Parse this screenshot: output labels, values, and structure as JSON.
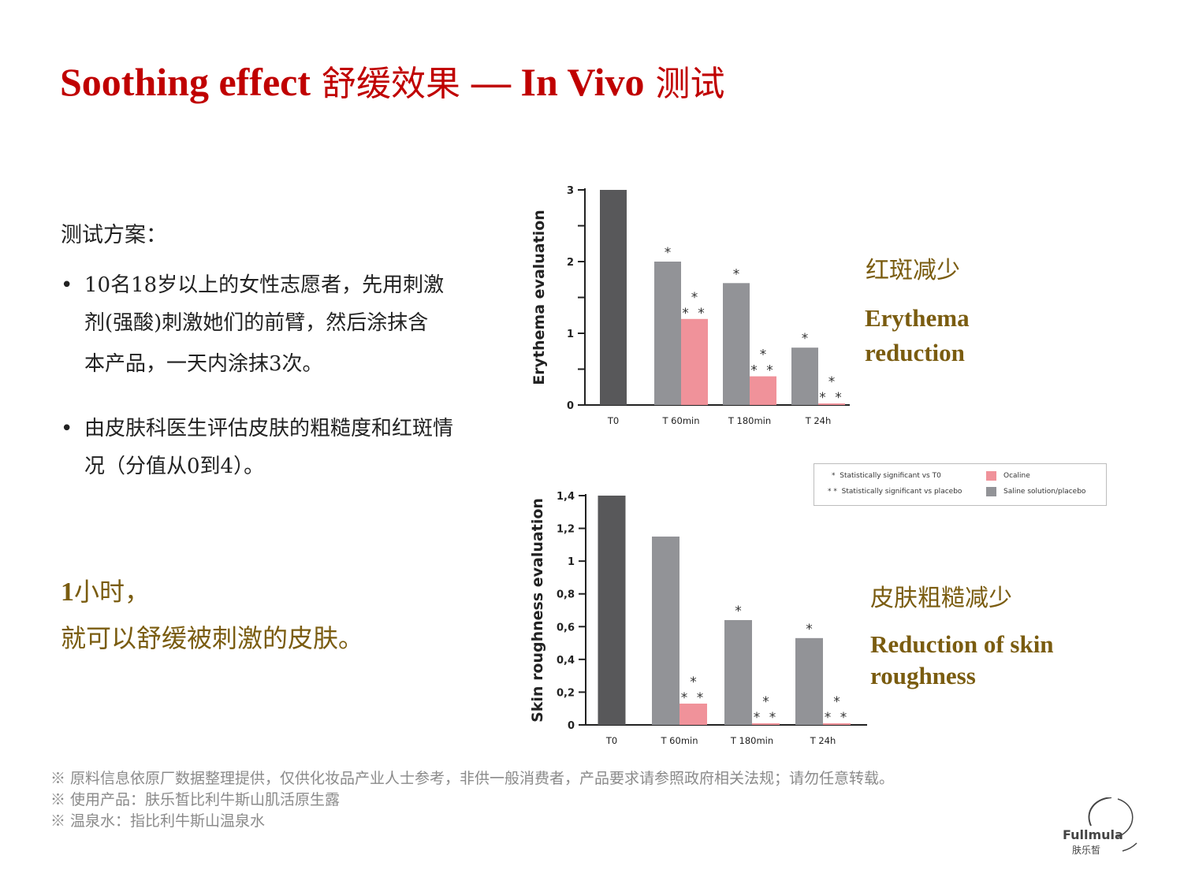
{
  "title": {
    "part1": "Soothing effect",
    "part2": " 舒缓效果 ",
    "part3": "— In Vivo",
    "part4": " 测试"
  },
  "plan": {
    "heading": "测试方案：",
    "bullets": [
      {
        "symbol": "•",
        "line1": "10名18岁以上的女性志愿者，先用刺激",
        "line2": "剂(强酸)刺激她们的前臂，然后涂抹含",
        "line3": "本产品，一天内涂抹3次。"
      },
      {
        "symbol": "•",
        "line1": "由皮肤科医生评估皮肤的粗糙度和红斑情",
        "line2": "况（分值从0到4）。"
      }
    ]
  },
  "highlight": {
    "bold": "1",
    "line1_rest": "小时，",
    "line2": "就可以舒缓被刺激的皮肤。"
  },
  "chart_labels": {
    "erythema_cn": "红斑减少",
    "erythema_en_1": "Erythema",
    "erythema_en_2": "reduction",
    "roughness_cn": "皮肤粗糙减少",
    "roughness_en_1": "Reduction of skin",
    "roughness_en_2": "roughness"
  },
  "legend": {
    "items": [
      {
        "symbol": "*",
        "text": "Statistically significant vs T0"
      },
      {
        "symbol": "* *",
        "text": "Statistically significant vs placebo"
      },
      {
        "text": "Ocaline",
        "color": "#f0929a"
      },
      {
        "text": "Saline solution/placebo",
        "color": "#929397"
      }
    ]
  },
  "footnotes": [
    "※ 原料信息依原厂数据整理提供，仅供化妆品产业人士参考，非供一般消费者，产品要求请参照政府相关法规；请勿任意转载。",
    "※ 使用产品：肤乐皙比利牛斯山肌活原生露",
    "※ 温泉水：指比利牛斯山温泉水"
  ],
  "logo": {
    "wordmark": "Fullmula",
    "sub": "肤乐皙"
  },
  "colors": {
    "title": "#c00000",
    "accent": "#7a5c10",
    "placebo": "#929397",
    "product": "#f0929a",
    "baseline": "#58585a"
  },
  "chart_data": [
    {
      "type": "bar",
      "ylabel": "Erythema evaluation",
      "ylim": [
        0,
        3
      ],
      "yticks": [
        "0",
        "1",
        "2",
        "3"
      ],
      "categories": [
        "T0",
        "T 60min",
        "T 180min",
        "T 24h"
      ],
      "baseline": {
        "category": "T0",
        "value": 3
      },
      "series": [
        {
          "name": "Saline solution/placebo",
          "values": [
            null,
            2.0,
            1.7,
            0.8
          ],
          "marks": [
            "",
            "*",
            "*",
            "*"
          ]
        },
        {
          "name": "Ocaline",
          "values": [
            null,
            1.2,
            0.4,
            0.02
          ],
          "marks": [
            "",
            "* * *",
            "* * *",
            "* * *"
          ]
        }
      ]
    },
    {
      "type": "bar",
      "ylabel": "Skin roughness evaluation",
      "ylim": [
        0,
        1.4
      ],
      "yticks": [
        "0",
        "0,2",
        "0,4",
        "0,6",
        "0,8",
        "1",
        "1,2",
        "1,4"
      ],
      "categories": [
        "T0",
        "T 60min",
        "T 180min",
        "T 24h"
      ],
      "baseline": {
        "category": "T0",
        "value": 1.4
      },
      "series": [
        {
          "name": "Saline solution/placebo",
          "values": [
            null,
            1.15,
            0.64,
            0.53
          ],
          "marks": [
            "",
            "",
            "*",
            "*"
          ]
        },
        {
          "name": "Ocaline",
          "values": [
            null,
            0.13,
            0.01,
            0.01
          ],
          "marks": [
            "",
            "* * *",
            "* * *",
            "* * *"
          ]
        }
      ]
    }
  ]
}
